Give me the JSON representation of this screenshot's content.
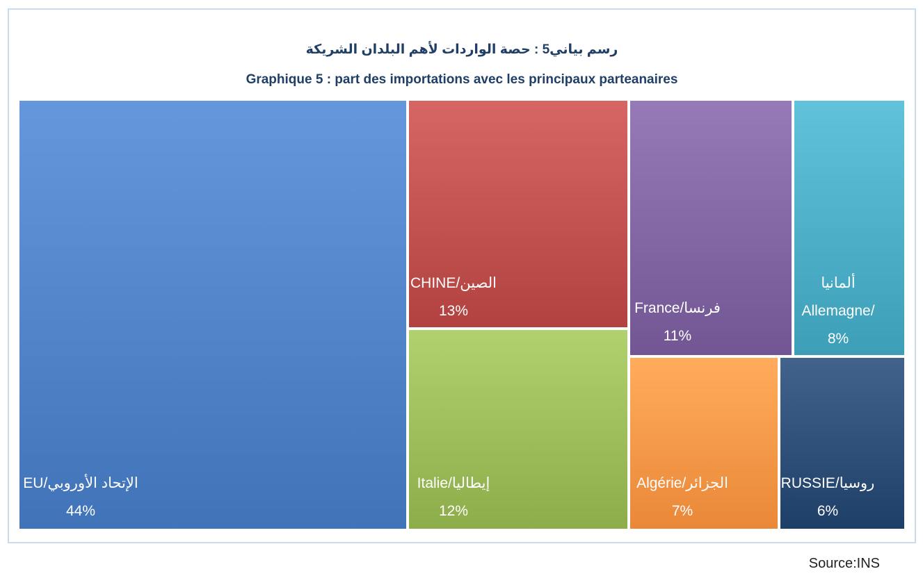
{
  "title_ar": "رسم بياني5 : حصة الواردات لأهم البلدان الشريكة",
  "title_fr": "Graphique 5 : part des importations avec les principaux parteanaires",
  "source": "Source:INS",
  "chart_data": {
    "type": "treemap",
    "title": "Graphique 5 : part des importations avec les principaux parteanaires",
    "unit": "%",
    "items": [
      {
        "label": "EU/الإتحاد الأوروبي",
        "value": 44,
        "value_label": "44%",
        "color": "#4f81c7"
      },
      {
        "label": "CHINE/الصين",
        "value": 13,
        "value_label": "13%",
        "color": "#c0504d"
      },
      {
        "label": "Italie/إيطاليا",
        "value": 12,
        "value_label": "12%",
        "color": "#9bbb59"
      },
      {
        "label": "France/فرنسا",
        "value": 11,
        "value_label": "11%",
        "color": "#8064a2"
      },
      {
        "label_lines": [
          "ألمانيا",
          "Allemagne/"
        ],
        "value": 8,
        "value_label": "8%",
        "color": "#4bacc6"
      },
      {
        "label": "Algérie/الجزائر",
        "value": 7,
        "value_label": "7%",
        "color": "#f79646"
      },
      {
        "label": "RUSSIE/روسيا",
        "value": 6,
        "value_label": "6%",
        "color": "#2c4d75"
      }
    ]
  }
}
